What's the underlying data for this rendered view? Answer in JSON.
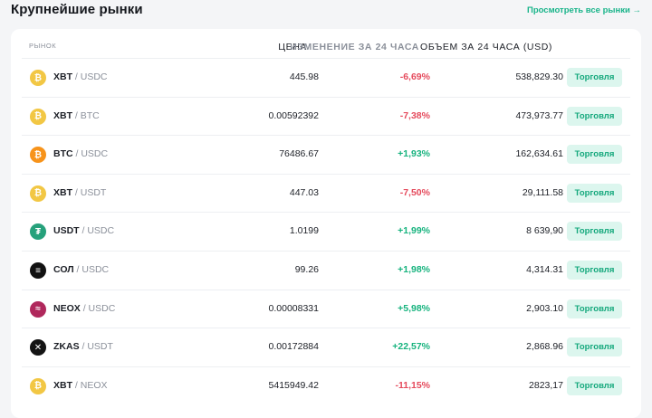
{
  "header": {
    "title": "Крупнейшие рынки",
    "view_all": "Просмотреть все рынки →"
  },
  "table": {
    "columns": {
      "market": "РЫНОК",
      "price": "ЦЕНА",
      "change": "ИЗМЕНЕНИЕ ЗА 24 ЧАСА",
      "volume": "ОБЪЕМ ЗА 24 ЧАСА (USD)"
    },
    "trade_label": "Торговля",
    "rows": [
      {
        "base": "XBT",
        "quote": "/ USDC",
        "icon": "bitcoin-icon",
        "icon_glyph": "₿",
        "icon_color": "#f2c744",
        "price": "445.98",
        "change": "-6,69%",
        "direction": "neg",
        "volume": "538,829.30"
      },
      {
        "base": "XBT",
        "quote": "/ BTC",
        "icon": "bitcoin-icon",
        "icon_glyph": "₿",
        "icon_color": "#f2c744",
        "price": "0.00592392",
        "change": "-7,38%",
        "direction": "neg",
        "volume": "473,973.77"
      },
      {
        "base": "BTC",
        "quote": "/ USDC",
        "icon": "bitcoin-icon",
        "icon_glyph": "₿",
        "icon_color": "#f7931a",
        "price": "76486.67",
        "change": "+1,93%",
        "direction": "pos",
        "volume": "162,634.61"
      },
      {
        "base": "XBT",
        "quote": "/ USDT",
        "icon": "bitcoin-icon",
        "icon_glyph": "₿",
        "icon_color": "#f2c744",
        "price": "447.03",
        "change": "-7,50%",
        "direction": "neg",
        "volume": "29,111.58"
      },
      {
        "base": "USDT",
        "quote": "/ USDC",
        "icon": "tether-icon",
        "icon_glyph": "₮",
        "icon_color": "#26a17b",
        "price": "1.0199",
        "change": "+1,99%",
        "direction": "pos",
        "volume": "8 639,90"
      },
      {
        "base": "СОЛ",
        "quote": "/ USDC",
        "icon": "solana-icon",
        "icon_glyph": "≡",
        "icon_color": "#111111",
        "price": "99.26",
        "change": "+1,98%",
        "direction": "pos",
        "volume": "4,314.31"
      },
      {
        "base": "NEOX",
        "quote": "/ USDC",
        "icon": "neox-icon",
        "icon_glyph": "≈",
        "icon_color": "#b0285c",
        "price": "0.00008331",
        "change": "+5,98%",
        "direction": "pos",
        "volume": "2,903.10"
      },
      {
        "base": "ZKAS",
        "quote": "/ USDT",
        "icon": "zkas-icon",
        "icon_glyph": "✕",
        "icon_color": "#141414",
        "price": "0.00172884",
        "change": "+22,57%",
        "direction": "pos",
        "volume": "2,868.96"
      },
      {
        "base": "XBT",
        "quote": "/ NEOX",
        "icon": "bitcoin-icon",
        "icon_glyph": "₿",
        "icon_color": "#f2c744",
        "price": "5415949.42",
        "change": "-11,15%",
        "direction": "neg",
        "volume": "2823,17"
      }
    ]
  }
}
